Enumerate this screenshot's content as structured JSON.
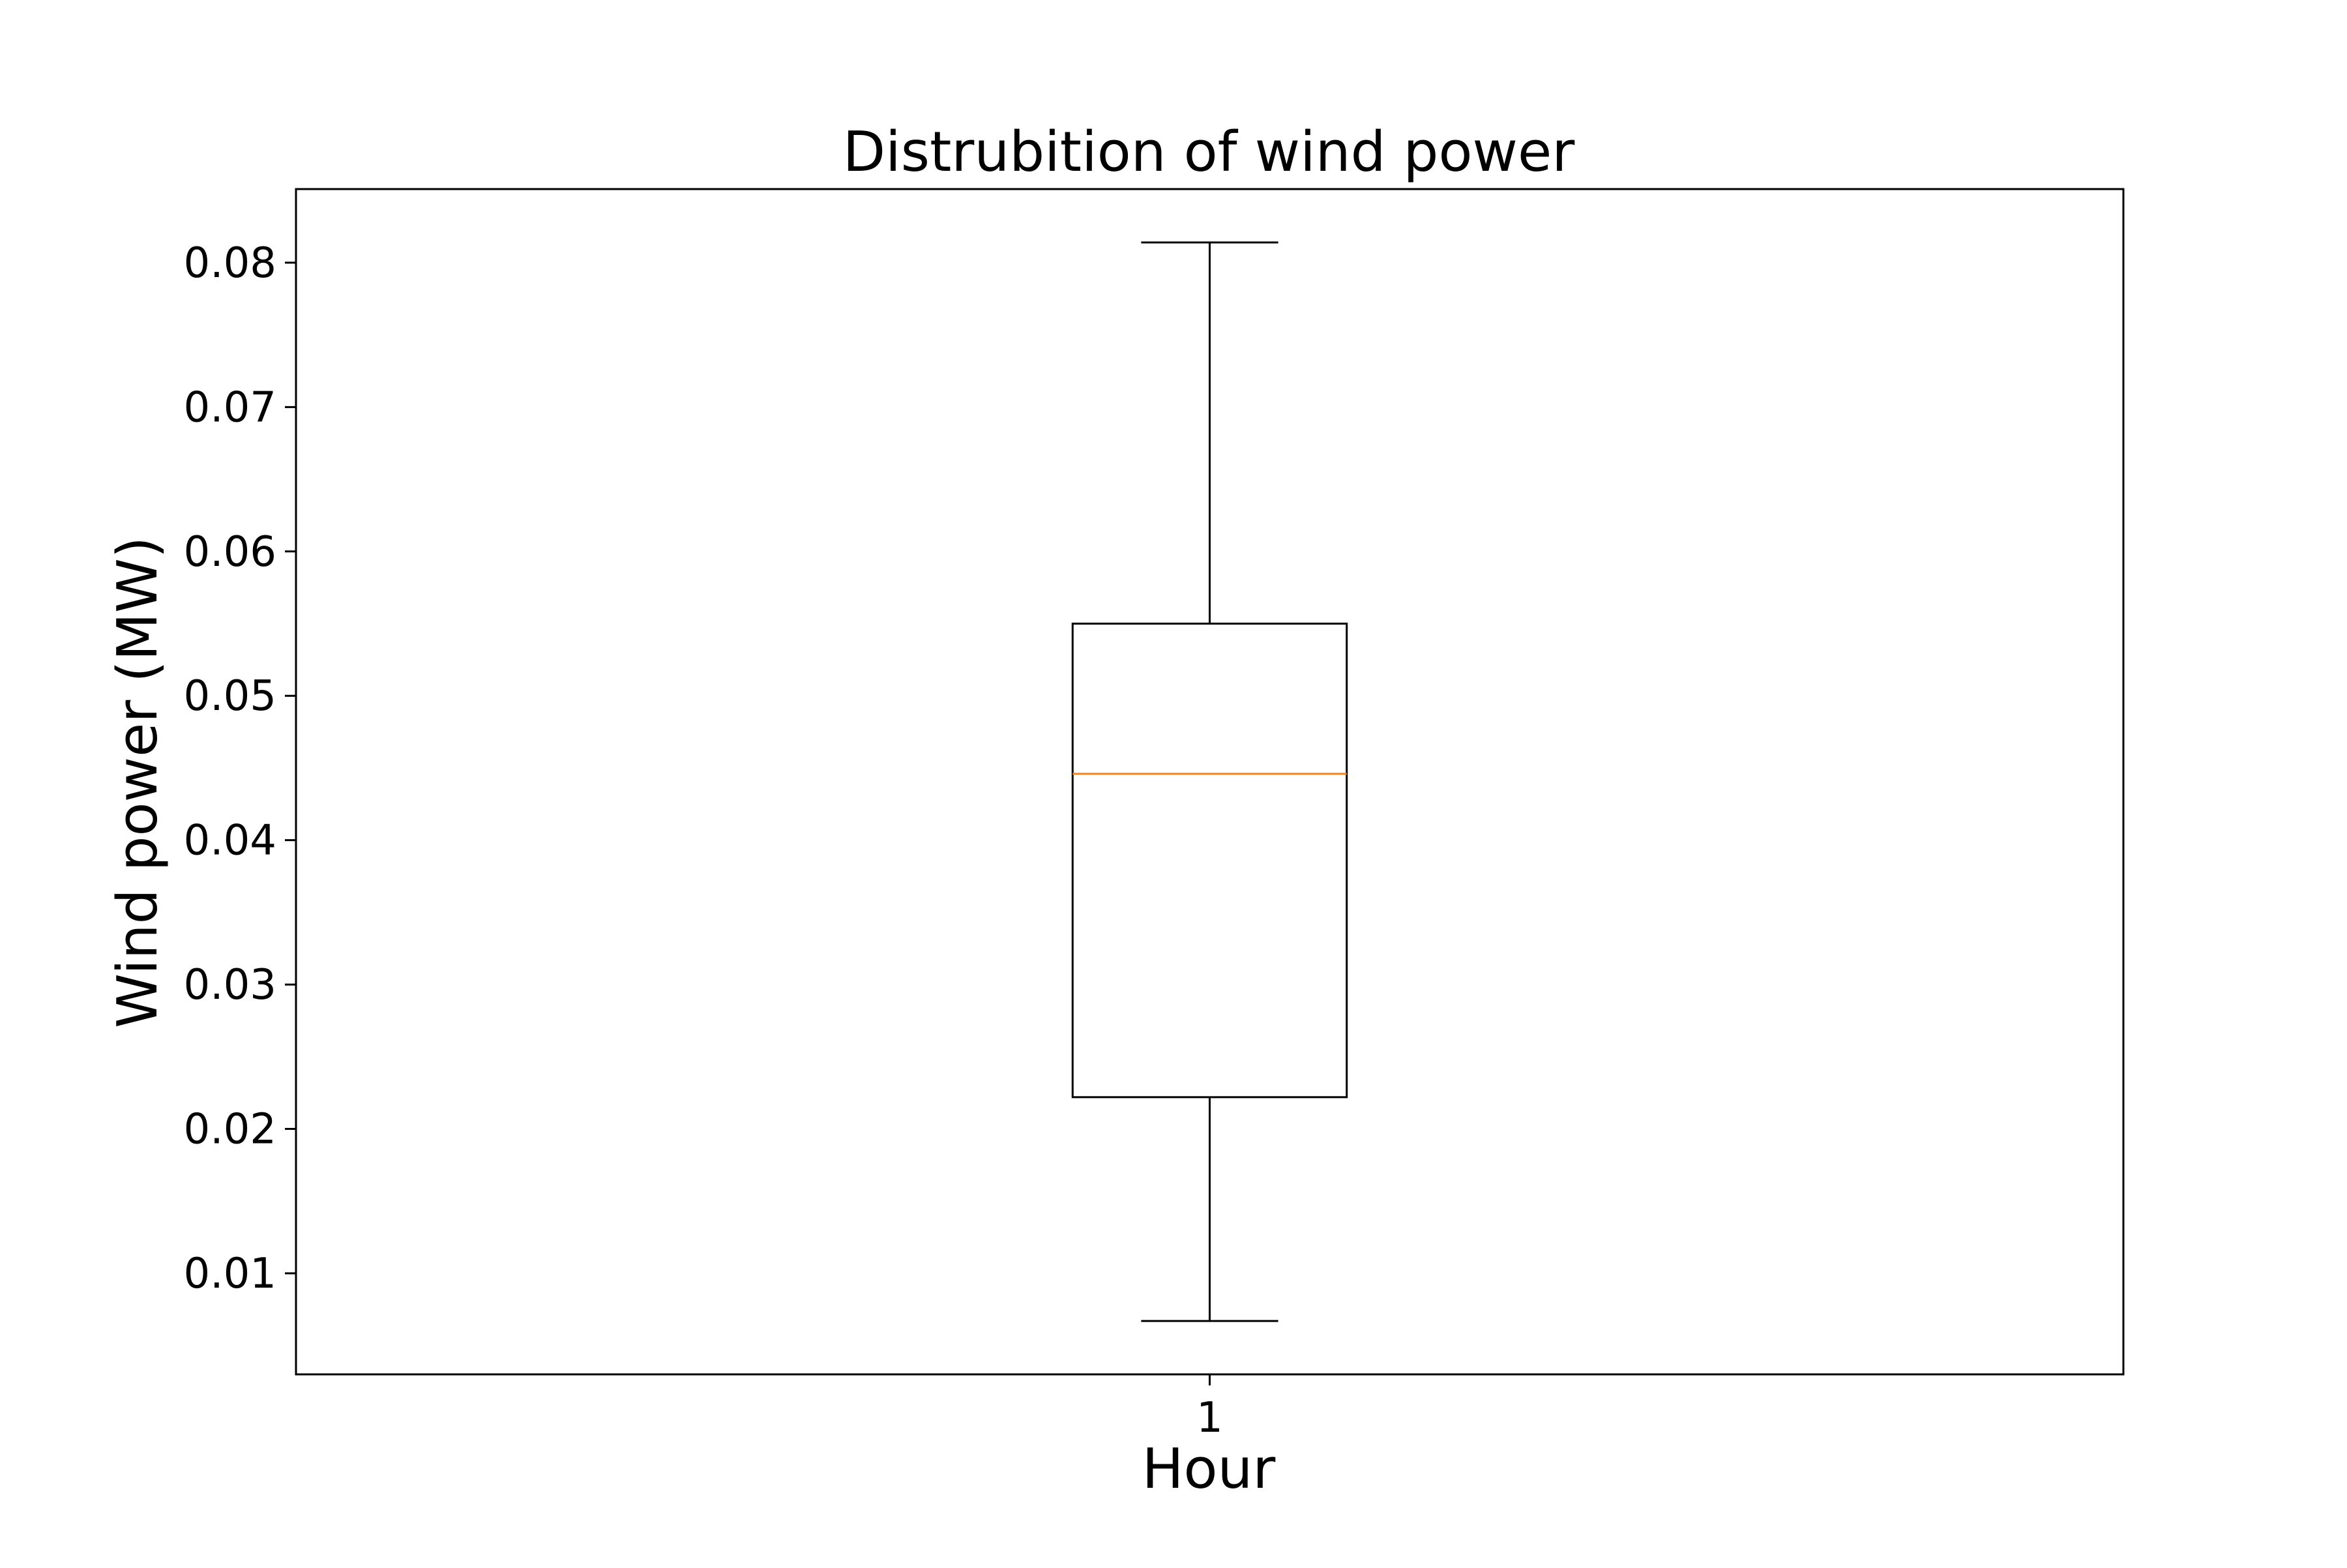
{
  "chart_data": {
    "type": "box",
    "title": "Distrubition of wind power",
    "xlabel": "Hour",
    "ylabel": "Wind power (MW)",
    "categories": [
      "1"
    ],
    "boxes": [
      {
        "category": "1",
        "whisker_low": 0.0067,
        "q1": 0.0222,
        "median": 0.0446,
        "q3": 0.055,
        "whisker_high": 0.0814
      }
    ],
    "ylim": [
      0.003,
      0.0851
    ],
    "y_ticks": [
      0.01,
      0.02,
      0.03,
      0.04,
      0.05,
      0.06,
      0.07,
      0.08
    ],
    "y_tick_labels": [
      "0.01",
      "0.02",
      "0.03",
      "0.04",
      "0.05",
      "0.06",
      "0.07",
      "0.08"
    ],
    "grid": false,
    "colors": {
      "box": "#000000",
      "median": "#ff7f0e"
    }
  }
}
